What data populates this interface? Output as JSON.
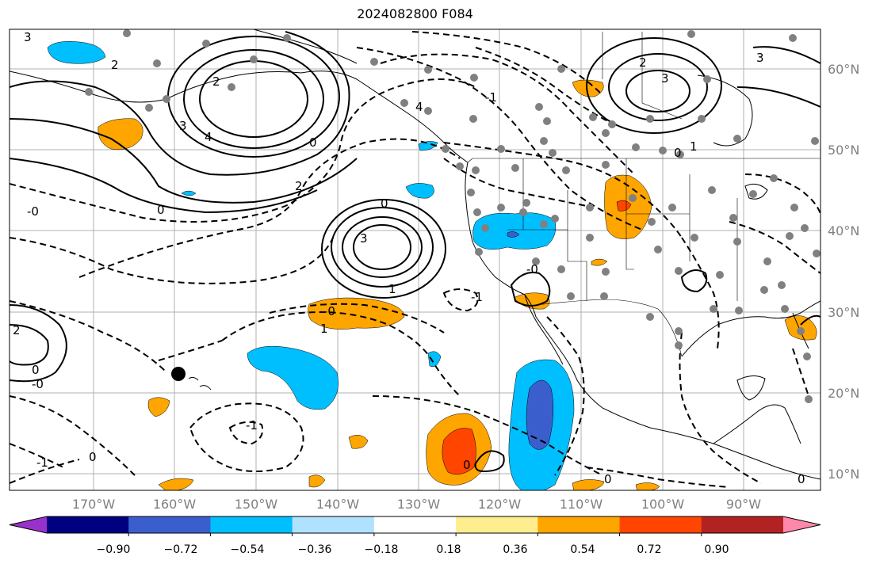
{
  "title": "2024082800 F084",
  "colors": {
    "coast": "#000000",
    "grid": "#b0b0b0",
    "station": "#808080",
    "hawaii_marker": "#000000"
  },
  "lon_labels": [
    "170°W",
    "160°W",
    "150°W",
    "140°W",
    "130°W",
    "120°W",
    "110°W",
    "100°W",
    "90°W"
  ],
  "lat_labels": [
    "60°N",
    "50°N",
    "40°N",
    "30°N",
    "20°N",
    "10°N"
  ],
  "colorbar": {
    "colors": [
      "#9932cc",
      "#000080",
      "#3a5fcd",
      "#00bfff",
      "#b0e2ff",
      "#ffffff",
      "#ffee90",
      "#ffa500",
      "#ff4500",
      "#b22222",
      "#ff88aa"
    ],
    "tick_labels": [
      "−0.90",
      "−0.72",
      "−0.54",
      "−0.36",
      "−0.18",
      "0.18",
      "0.36",
      "0.54",
      "0.72",
      "0.90"
    ]
  },
  "contour_labels": [
    "3",
    "2",
    "3",
    "4",
    "2",
    "0",
    "-0",
    "0",
    "2",
    "3",
    "1",
    "0",
    "-1",
    "-0",
    "1",
    "-1",
    "2",
    "-0",
    "-1",
    "0",
    "0",
    "3",
    "2",
    "1",
    "0",
    "-0",
    "4",
    "3",
    "0",
    "0",
    "0",
    "-1"
  ]
}
